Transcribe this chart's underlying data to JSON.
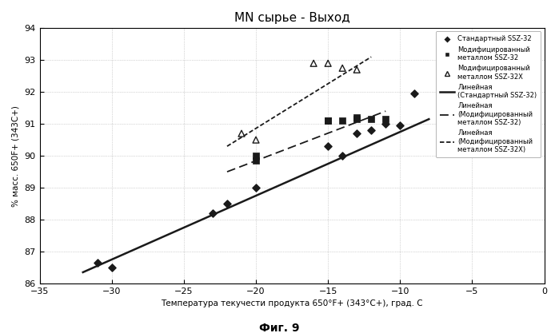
{
  "title": "MN сырье - Выход",
  "xlabel": "Температура текучести продукта 650°F+ (343°C+), град. С",
  "ylabel": "% масс. 650F+ (343C+)",
  "figcaption": "Фиг. 9",
  "xlim": [
    -35,
    0
  ],
  "ylim": [
    86,
    94
  ],
  "xticks": [
    -35,
    -30,
    -25,
    -20,
    -15,
    -10,
    -5,
    0
  ],
  "yticks": [
    86,
    87,
    88,
    89,
    90,
    91,
    92,
    93,
    94
  ],
  "ssz32_x": [
    -31,
    -30,
    -23,
    -22,
    -20,
    -15,
    -14,
    -13,
    -12,
    -11,
    -10,
    -9
  ],
  "ssz32_y": [
    86.65,
    86.5,
    88.2,
    88.5,
    89.0,
    90.3,
    90.0,
    90.7,
    90.8,
    91.0,
    90.95,
    91.95
  ],
  "mod_ssz32_x": [
    -20,
    -20,
    -15,
    -15,
    -14,
    -13,
    -13,
    -12,
    -11
  ],
  "mod_ssz32_y": [
    89.85,
    90.0,
    91.1,
    91.1,
    91.1,
    91.2,
    91.15,
    91.15,
    91.15
  ],
  "mod_ssz32x_x": [
    -21,
    -20,
    -16,
    -15,
    -14,
    -13
  ],
  "mod_ssz32x_y": [
    90.7,
    90.5,
    92.9,
    92.9,
    92.75,
    92.7
  ],
  "line_ssz32_x1": -32,
  "line_ssz32_x2": -8,
  "line_ssz32_y1": 86.35,
  "line_ssz32_y2": 91.15,
  "line_mod_ssz32_x1": -22,
  "line_mod_ssz32_x2": -11,
  "line_mod_ssz32_y1": 89.5,
  "line_mod_ssz32_y2": 91.4,
  "line_mod_ssz32x_x1": -22,
  "line_mod_ssz32x_x2": -12,
  "line_mod_ssz32x_y1": 90.3,
  "line_mod_ssz32x_y2": 93.1,
  "legend_ssz32": "Стандартный SSZ-32",
  "legend_mod_ssz32": "Модифицированный\nметаллом SSZ-32",
  "legend_mod_ssz32x": "Модифицированный\nметаллом SSZ-32X",
  "legend_line_ssz32": "Линейная\n(Стандартный SSZ-32)",
  "legend_line_mod_ssz32": "Линейная\n(Модифицированный\nметаллом SSZ-32)",
  "legend_line_mod_ssz32x": "Линейная\n(Модифицированный\nметаллом SSZ-32X)",
  "color_dark": "#1a1a1a",
  "bg_color": "#ffffff",
  "grid_color": "#b0b0b0"
}
